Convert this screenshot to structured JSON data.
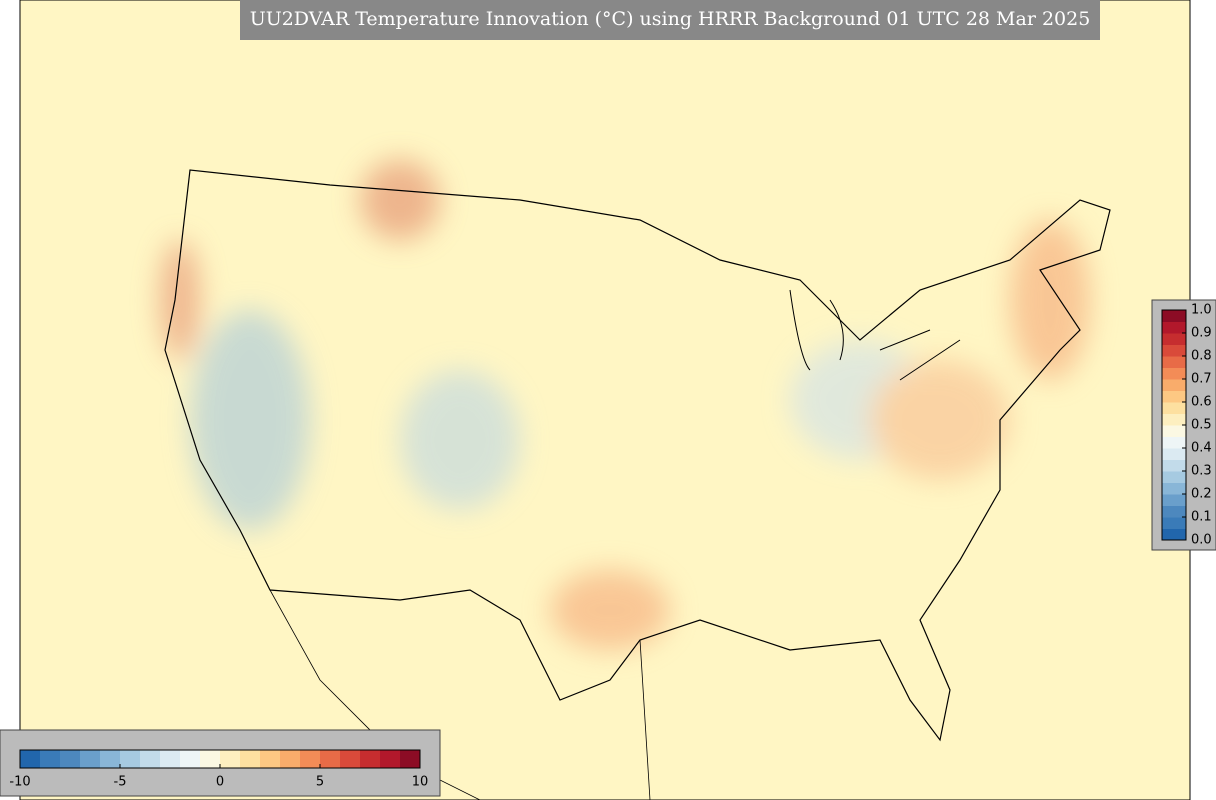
{
  "title": "UU2DVAR Temperature Innovation (°C) using HRRR Background 01 UTC 28 Mar 2025",
  "colorbar_horizontal": {
    "lim": [
      -10,
      10
    ],
    "ticks": [
      -10,
      -5,
      0,
      5,
      10
    ],
    "colors": [
      "#2166ac",
      "#3a7bb8",
      "#4d88be",
      "#6a9fcb",
      "#89b6d7",
      "#a6cae1",
      "#c2dbea",
      "#dbeaf2",
      "#eef5f6",
      "#fbf8e3",
      "#fdefc0",
      "#fde0a0",
      "#fdc883",
      "#f9ac6b",
      "#f38c57",
      "#e86b47",
      "#d94a3a",
      "#c62d2f",
      "#b2182b",
      "#8c0c25"
    ]
  },
  "colorbar_vertical": {
    "lim": [
      0,
      1
    ],
    "ticks": [
      {
        "value": 0,
        "label": "0.0"
      },
      0.1,
      0.2,
      0.3,
      0.4,
      0.5,
      0.6,
      0.7,
      0.8,
      0.9,
      {
        "value": 1,
        "label": "1.0"
      }
    ],
    "colors": [
      "#2166ac",
      "#3a7bb8",
      "#4d88be",
      "#6a9fcb",
      "#89b6d7",
      "#a6cae1",
      "#c2dbea",
      "#dbeaf2",
      "#eef5f6",
      "#fbf8e3",
      "#fdefc0",
      "#fde0a0",
      "#fdc883",
      "#f9ac6b",
      "#f38c57",
      "#e86b47",
      "#d94a3a",
      "#c62d2f",
      "#b2182b",
      "#8c0c25"
    ]
  }
}
